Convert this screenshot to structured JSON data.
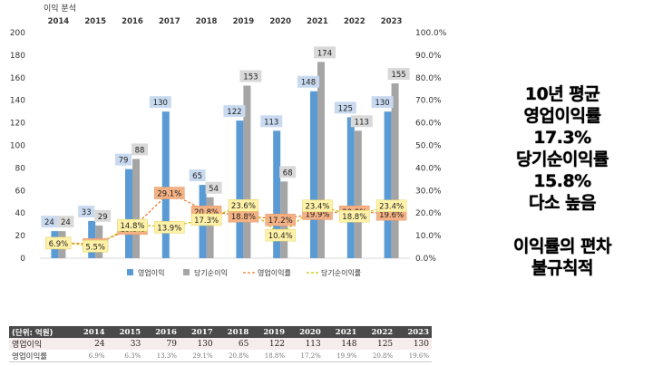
{
  "chart_data": {
    "type": "bar",
    "title": "이익 분석",
    "categories": [
      "2014",
      "2015",
      "2016",
      "2017",
      "2018",
      "2019",
      "2020",
      "2021",
      "2022",
      "2023"
    ],
    "series": [
      {
        "name": "영업이익",
        "kind": "bar",
        "axis": "left",
        "color": "#5b9bd5",
        "values": [
          24,
          33,
          79,
          130,
          65,
          122,
          113,
          148,
          125,
          130
        ]
      },
      {
        "name": "당기순이익",
        "kind": "bar",
        "axis": "left",
        "color": "#a5a5a5",
        "values": [
          24,
          29,
          88,
          null,
          54,
          153,
          68,
          174,
          113,
          155
        ]
      },
      {
        "name": "영업이익률",
        "kind": "line",
        "axis": "right",
        "color": "#ed7d31",
        "values": [
          6.9,
          6.3,
          13.3,
          29.1,
          20.8,
          18.8,
          17.2,
          19.9,
          20.8,
          19.6
        ]
      },
      {
        "name": "당기순이익률",
        "kind": "line",
        "axis": "right",
        "color": "#c9c000",
        "values": [
          6.9,
          5.5,
          14.8,
          13.9,
          17.3,
          23.6,
          10.4,
          23.4,
          18.8,
          23.4
        ]
      }
    ],
    "bar_labels": {
      "영업이익": [
        "24",
        "33",
        "79",
        "130",
        "65",
        "122",
        "113",
        "148",
        "125",
        "130"
      ],
      "당기순이익": [
        "24",
        "29",
        "88",
        "",
        "54",
        "153",
        "68",
        "174",
        "113",
        "155"
      ]
    },
    "line_labels": {
      "영업이익률": [
        "6.9%",
        "6.3%",
        "13.3%",
        "29.1%",
        "20.8%",
        "18.8%",
        "17.2%",
        "19.9%",
        "20.8%",
        "19.6%"
      ],
      "당기순이익률": [
        "6.9%",
        "5.5%",
        "14.8%",
        "13.9%",
        "17.3%",
        "23.6%",
        "10.4%",
        "23.4%",
        "18.8%",
        "23.4%"
      ]
    },
    "ylim_left": [
      0,
      200
    ],
    "yticks_left": [
      "0",
      "20",
      "40",
      "60",
      "80",
      "100",
      "120",
      "140",
      "160",
      "180",
      "200"
    ],
    "ylim_right": [
      0,
      100
    ],
    "yticks_right": [
      "0.0%",
      "10.0%",
      "20.0%",
      "30.0%",
      "40.0%",
      "50.0%",
      "60.0%",
      "70.0%",
      "80.0%",
      "90.0%",
      "100.0%"
    ],
    "x_axis_position": "top",
    "legend_position": "bottom",
    "grid": false
  },
  "side_text": [
    "10년 평균",
    "영업이익률",
    "17.3%",
    "당기순이익률",
    "15.8%",
    "다소 높음",
    "",
    "이익률의 편차",
    "불규칙적"
  ],
  "table": {
    "header": [
      "(단위: 억원)",
      "2014",
      "2015",
      "2016",
      "2017",
      "2018",
      "2019",
      "2020",
      "2021",
      "2022",
      "2023"
    ],
    "rows": [
      [
        "영업이익",
        "24",
        "33",
        "79",
        "130",
        "65",
        "122",
        "113",
        "148",
        "125",
        "130"
      ],
      [
        "영업이익률",
        "6.9%",
        "6.3%",
        "13.3%",
        "29.1%",
        "20.8%",
        "18.8%",
        "17.2%",
        "19.9%",
        "20.8%",
        "19.6%"
      ]
    ]
  }
}
